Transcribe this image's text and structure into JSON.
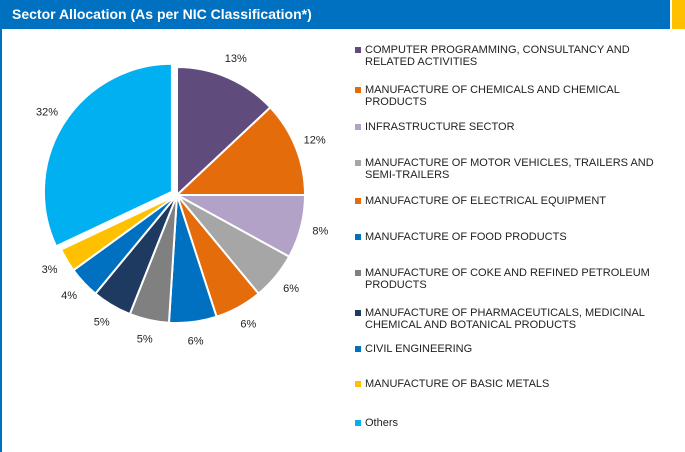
{
  "chart_data": {
    "type": "pie",
    "title": "Sector Allocation (As per NIC Classification*)",
    "categories": [
      "COMPUTER PROGRAMMING, CONSULTANCY AND RELATED ACTIVITIES",
      "MANUFACTURE OF CHEMICALS AND CHEMICAL PRODUCTS",
      "INFRASTRUCTURE SECTOR",
      "MANUFACTURE OF MOTOR VEHICLES, TRAILERS AND SEMI-TRAILERS",
      "MANUFACTURE OF ELECTRICAL EQUIPMENT",
      "MANUFACTURE OF FOOD PRODUCTS",
      "MANUFACTURE OF COKE AND REFINED PETROLEUM PRODUCTS",
      "MANUFACTURE OF PHARMACEUTICALS, MEDICINAL CHEMICAL AND BOTANICAL PRODUCTS",
      "CIVIL ENGINEERING",
      "MANUFACTURE OF BASIC METALS",
      "Others"
    ],
    "values": [
      13,
      12,
      8,
      6,
      6,
      6,
      5,
      5,
      4,
      3,
      32
    ],
    "value_labels": [
      "13%",
      "12%",
      "8%",
      "6%",
      "6%",
      "6%",
      "5%",
      "5%",
      "4%",
      "3%",
      "32%"
    ],
    "colors": [
      "#5f4b7c",
      "#e46c0a",
      "#b3a2c7",
      "#a6a6a6",
      "#e46c0a",
      "#0070c0",
      "#808080",
      "#1f3a60",
      "#0070c0",
      "#ffc000",
      "#00b0f0"
    ]
  }
}
